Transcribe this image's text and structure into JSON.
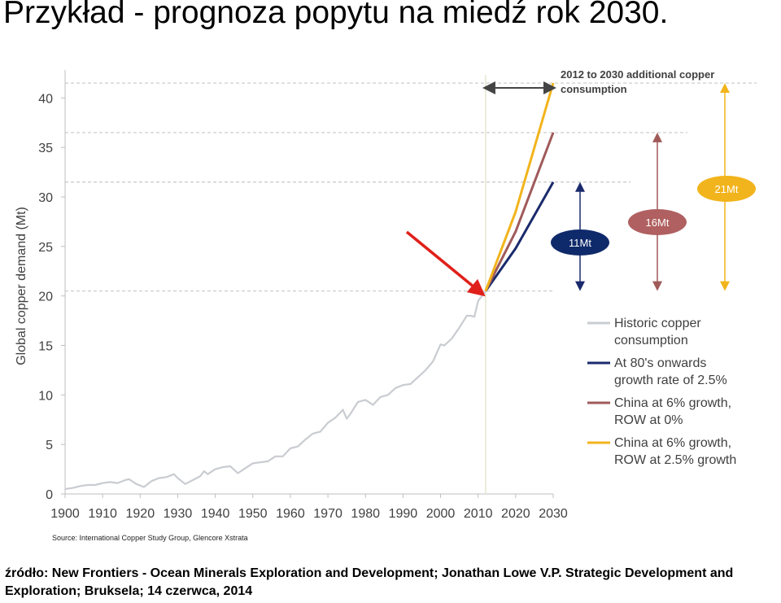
{
  "slide": {
    "title": "Przykład - prognoza popytu na miedź rok 2030.",
    "footer": "źródło: New Frontiers - Ocean Minerals Exploration and Development;  Jonathan Lowe V.P. Strategic Development and Exploration; Bruksela; 14 czerwca, 2014"
  },
  "chart_data": {
    "type": "line",
    "title": "",
    "xlabel": "",
    "ylabel": "Global copper demand (Mt)",
    "xlim": [
      1900,
      2030
    ],
    "ylim": [
      0,
      42
    ],
    "xticks": [
      1900,
      1910,
      1920,
      1930,
      1940,
      1950,
      1960,
      1970,
      1980,
      1990,
      2000,
      2010,
      2020,
      2030
    ],
    "yticks": [
      0,
      5,
      10,
      15,
      20,
      25,
      30,
      35,
      40
    ],
    "grid": "dashed reference lines at 20.5, 31.5, 36.5, 41.5",
    "legend_position": "right",
    "annotation_top": "2012 to 2030 additional copper consumption",
    "badges": [
      {
        "label": "11Mt",
        "color": "#0f2a6b"
      },
      {
        "label": "16Mt",
        "color": "#b06060"
      },
      {
        "label": "21Mt",
        "color": "#f2b41c"
      }
    ],
    "source": "Source: International Copper Study Group, Glencore Xstrata",
    "series": [
      {
        "name": "Historic copper consumption",
        "color": "#c9ccd1",
        "x": [
          1900,
          1902,
          1904,
          1906,
          1908,
          1910,
          1912,
          1914,
          1916,
          1917,
          1919,
          1921,
          1923,
          1925,
          1927,
          1929,
          1930,
          1932,
          1934,
          1936,
          1937,
          1938,
          1940,
          1942,
          1944,
          1946,
          1948,
          1950,
          1952,
          1954,
          1956,
          1958,
          1960,
          1962,
          1964,
          1966,
          1968,
          1970,
          1972,
          1974,
          1975,
          1976,
          1978,
          1980,
          1982,
          1984,
          1986,
          1988,
          1990,
          1992,
          1994,
          1996,
          1998,
          2000,
          2001,
          2003,
          2005,
          2007,
          2008,
          2009,
          2010,
          2012
        ],
        "values": [
          0.5,
          0.6,
          0.8,
          0.9,
          0.9,
          1.1,
          1.2,
          1.1,
          1.4,
          1.5,
          1.0,
          0.7,
          1.3,
          1.6,
          1.7,
          2.0,
          1.6,
          1.0,
          1.4,
          1.8,
          2.3,
          2.0,
          2.5,
          2.7,
          2.8,
          2.1,
          2.6,
          3.1,
          3.2,
          3.3,
          3.8,
          3.8,
          4.6,
          4.8,
          5.5,
          6.1,
          6.3,
          7.2,
          7.7,
          8.5,
          7.6,
          8.1,
          9.3,
          9.5,
          9.0,
          9.8,
          10.0,
          10.7,
          11.0,
          11.1,
          11.8,
          12.5,
          13.4,
          15.1,
          15.0,
          15.7,
          16.8,
          18.0,
          18.0,
          17.9,
          19.5,
          20.5
        ]
      },
      {
        "name": "At 80's onwards growth rate of 2.5%",
        "color": "#1a2a6c",
        "x": [
          2012,
          2020,
          2030
        ],
        "values": [
          20.5,
          24.8,
          31.5
        ]
      },
      {
        "name": "China at 6% growth, ROW at 0%",
        "color": "#a05a5a",
        "x": [
          2012,
          2020,
          2030
        ],
        "values": [
          20.5,
          26.5,
          36.5
        ]
      },
      {
        "name": "China at 6% growth, ROW at 2.5% growth",
        "color": "#f2b41c",
        "x": [
          2012,
          2020,
          2030
        ],
        "values": [
          20.5,
          28.5,
          41.5
        ]
      }
    ]
  }
}
